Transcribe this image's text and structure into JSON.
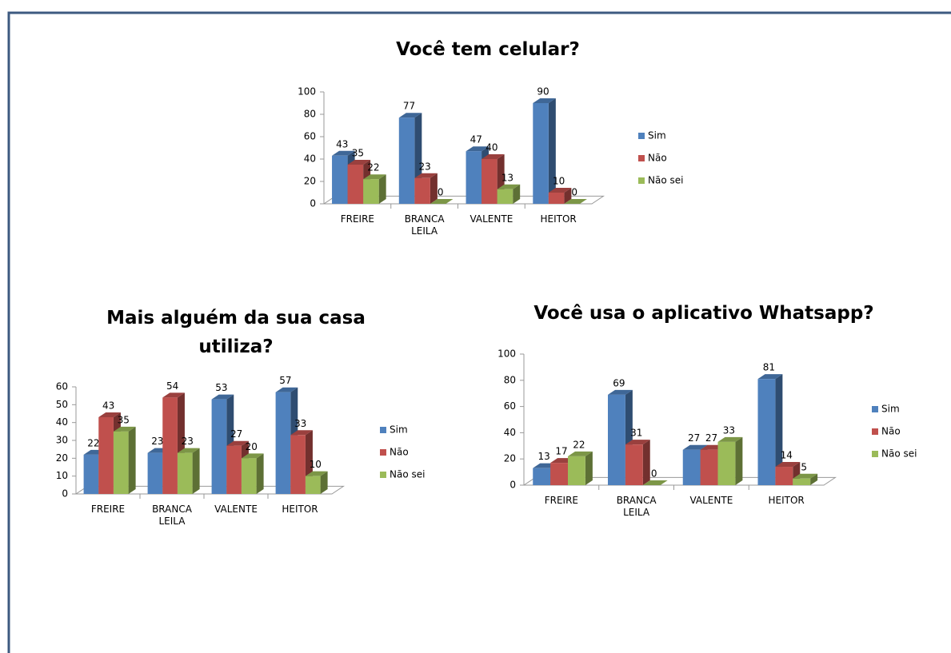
{
  "chart_data": [
    {
      "type": "bar",
      "title": "Você tem celular?",
      "categories": [
        "FREIRE",
        "BRANCA LEILA",
        "VALENTE",
        "HEITOR"
      ],
      "series": [
        {
          "name": "Sim",
          "color": "#4f81bd",
          "values": [
            43,
            77,
            47,
            90
          ]
        },
        {
          "name": "Não",
          "color": "#c0504d",
          "values": [
            35,
            23,
            40,
            10
          ]
        },
        {
          "name": "Não sei",
          "color": "#9bbb59",
          "values": [
            22,
            0,
            13,
            0
          ]
        }
      ],
      "ylim": [
        0,
        100
      ],
      "yticks": [
        0,
        20,
        40,
        60,
        80,
        100
      ],
      "legend": "right"
    },
    {
      "type": "bar",
      "title": "Mais alguém da sua casa utiliza?",
      "categories": [
        "FREIRE",
        "BRANCA LEILA",
        "VALENTE",
        "HEITOR"
      ],
      "series": [
        {
          "name": "Sim",
          "color": "#4f81bd",
          "values": [
            22,
            23,
            53,
            57
          ]
        },
        {
          "name": "Não",
          "color": "#c0504d",
          "values": [
            43,
            54,
            27,
            33
          ]
        },
        {
          "name": "Não sei",
          "color": "#9bbb59",
          "values": [
            35,
            23,
            20,
            10
          ]
        }
      ],
      "ylim": [
        0,
        60
      ],
      "yticks": [
        0,
        10,
        20,
        30,
        40,
        50,
        60
      ],
      "legend": "right"
    },
    {
      "type": "bar",
      "title": "Você usa o aplicativo Whatsapp?",
      "categories": [
        "FREIRE",
        "BRANCA LEILA",
        "VALENTE",
        "HEITOR"
      ],
      "series": [
        {
          "name": "Sim",
          "color": "#4f81bd",
          "values": [
            13,
            69,
            27,
            81
          ]
        },
        {
          "name": "Não",
          "color": "#c0504d",
          "values": [
            17,
            31,
            27,
            14
          ]
        },
        {
          "name": "Não sei",
          "color": "#9bbb59",
          "values": [
            22,
            0,
            33,
            5
          ]
        }
      ],
      "ylim": [
        0,
        100
      ],
      "yticks": [
        0,
        20,
        40,
        60,
        80,
        100
      ],
      "legend": "right"
    }
  ]
}
